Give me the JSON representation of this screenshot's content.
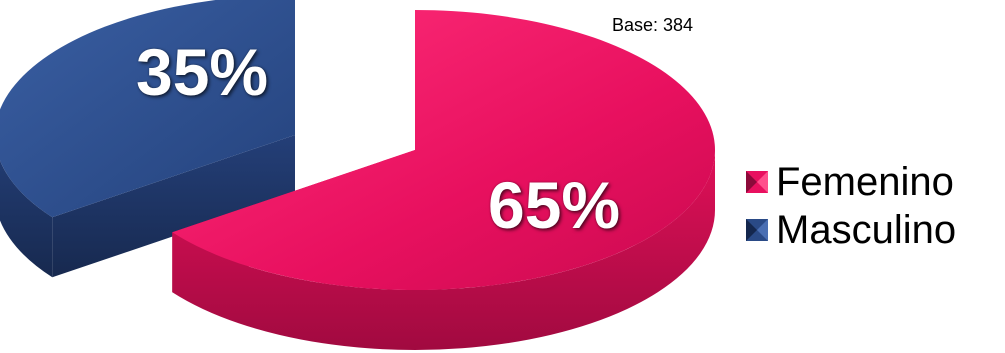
{
  "note": "Base: 384",
  "chart_data": {
    "type": "pie",
    "style": "3d-exploded",
    "categories": [
      "Femenino",
      "Masculino"
    ],
    "values": [
      65,
      35
    ],
    "data_labels": [
      "65%",
      "35%"
    ],
    "colors": [
      "#e8105f",
      "#2a4a86"
    ],
    "legend_position": "right",
    "title": ""
  },
  "legend": [
    {
      "label": "Femenino",
      "color": "#e8105f"
    },
    {
      "label": "Masculino",
      "color": "#2a4a86"
    }
  ]
}
